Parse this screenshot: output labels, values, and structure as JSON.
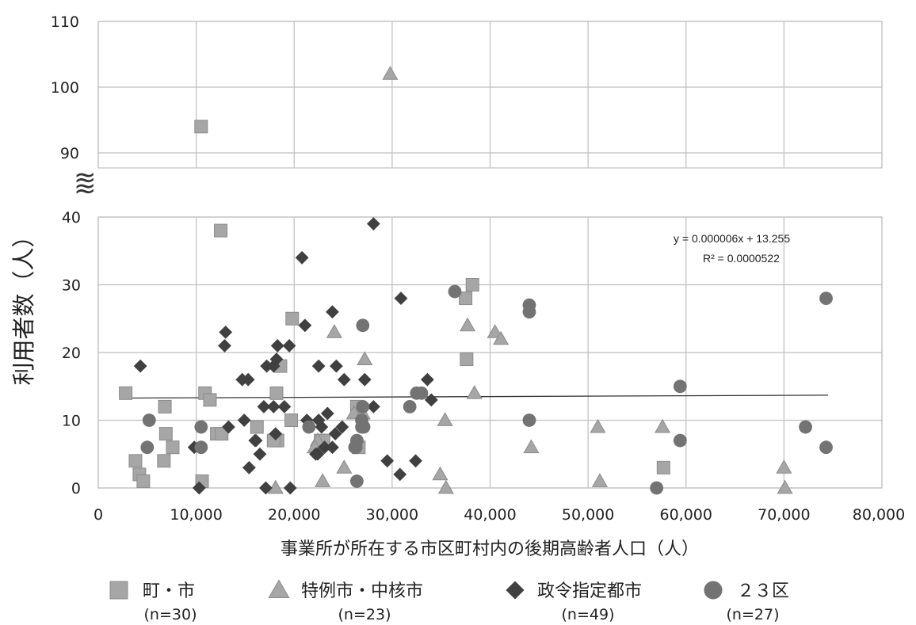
{
  "chart_data": {
    "type": "scatter",
    "title": "",
    "xlabel": "事業所が所在する市区町村内の後期高齢者人口（人）",
    "ylabel": "利用者数（人）",
    "xlim": [
      0,
      80000
    ],
    "x_ticks": [
      "0",
      "10,000",
      "20,000",
      "30,000",
      "40,000",
      "50,000",
      "60,000",
      "70,000",
      "80,000"
    ],
    "ylim_lower": [
      0,
      40
    ],
    "y_ticks_lower": [
      "0",
      "10",
      "20",
      "30",
      "40"
    ],
    "ylim_upper": [
      88,
      110
    ],
    "y_ticks_upper": [
      "90",
      "100",
      "110"
    ],
    "axis_break_symbol": "≈",
    "grid": true,
    "legend_position": "bottom",
    "trendline": {
      "equation": "y = 0.000006x + 13.255",
      "r2": "R² = 0.0000522",
      "x_range": [
        3000,
        74500
      ],
      "slope": 6e-06,
      "intercept": 13.255
    },
    "series": [
      {
        "name": "町・市",
        "n_label": "(n=30)",
        "marker": "square",
        "color": "#a6a6a6",
        "points": [
          [
            10500,
            94
          ],
          [
            12500,
            38
          ],
          [
            2800,
            14
          ],
          [
            3800,
            4
          ],
          [
            4200,
            2
          ],
          [
            4600,
            1
          ],
          [
            6800,
            12
          ],
          [
            6900,
            8
          ],
          [
            6700,
            4
          ],
          [
            7600,
            6
          ],
          [
            10600,
            1
          ],
          [
            10900,
            14
          ],
          [
            11400,
            13
          ],
          [
            12100,
            8
          ],
          [
            12600,
            8
          ],
          [
            16200,
            9
          ],
          [
            18200,
            14
          ],
          [
            18300,
            7
          ],
          [
            18600,
            18
          ],
          [
            19800,
            25
          ],
          [
            19700,
            10
          ],
          [
            22700,
            7
          ],
          [
            26400,
            12
          ],
          [
            37500,
            28
          ],
          [
            38200,
            30
          ],
          [
            37600,
            19
          ],
          [
            57700,
            3
          ],
          [
            17900,
            7
          ],
          [
            26600,
            6
          ],
          [
            23000,
            7
          ]
        ]
      },
      {
        "name": "特例市・中核市",
        "n_label": "(n=23)",
        "marker": "triangle",
        "color": "#a6a6a6",
        "points": [
          [
            29800,
            102
          ],
          [
            18100,
            0
          ],
          [
            22400,
            7
          ],
          [
            22900,
            1
          ],
          [
            24100,
            23
          ],
          [
            25100,
            3
          ],
          [
            26100,
            11
          ],
          [
            27200,
            19
          ],
          [
            27000,
            11
          ],
          [
            34900,
            2
          ],
          [
            35500,
            0
          ],
          [
            35400,
            10
          ],
          [
            37700,
            24
          ],
          [
            38400,
            14
          ],
          [
            40500,
            23
          ],
          [
            41100,
            22
          ],
          [
            44200,
            6
          ],
          [
            51000,
            9
          ],
          [
            51200,
            1
          ],
          [
            57600,
            9
          ],
          [
            70000,
            3
          ],
          [
            70100,
            0
          ],
          [
            22100,
            6
          ]
        ]
      },
      {
        "name": "政令指定都市",
        "n_label": "(n=49)",
        "marker": "diamond",
        "color": "#404040",
        "points": [
          [
            4300,
            18
          ],
          [
            9800,
            6
          ],
          [
            10300,
            0
          ],
          [
            13000,
            23
          ],
          [
            12900,
            21
          ],
          [
            13300,
            9
          ],
          [
            14700,
            16
          ],
          [
            15300,
            16
          ],
          [
            14900,
            10
          ],
          [
            15400,
            3
          ],
          [
            16100,
            7
          ],
          [
            16500,
            5
          ],
          [
            16900,
            12
          ],
          [
            17200,
            18
          ],
          [
            17100,
            0
          ],
          [
            17900,
            18
          ],
          [
            17900,
            12
          ],
          [
            18100,
            8
          ],
          [
            18200,
            19
          ],
          [
            18300,
            21
          ],
          [
            19000,
            12
          ],
          [
            19500,
            21
          ],
          [
            19600,
            0
          ],
          [
            20800,
            34
          ],
          [
            21100,
            24
          ],
          [
            22200,
            5
          ],
          [
            22500,
            18
          ],
          [
            22500,
            10
          ],
          [
            22800,
            9
          ],
          [
            23100,
            6
          ],
          [
            23400,
            11
          ],
          [
            23900,
            26
          ],
          [
            23900,
            6
          ],
          [
            24200,
            8
          ],
          [
            24300,
            18
          ],
          [
            24900,
            9
          ],
          [
            25100,
            16
          ],
          [
            27200,
            16
          ],
          [
            28100,
            39
          ],
          [
            28100,
            12
          ],
          [
            29500,
            4
          ],
          [
            30800,
            2
          ],
          [
            30900,
            28
          ],
          [
            32400,
            4
          ],
          [
            33600,
            16
          ],
          [
            34000,
            13
          ],
          [
            22400,
            5
          ],
          [
            16000,
            7
          ],
          [
            21300,
            10
          ]
        ]
      },
      {
        "name": "２３区",
        "n_label": "(n=27)",
        "marker": "circle",
        "color": "#737373",
        "points": [
          [
            5000,
            6
          ],
          [
            5200,
            10
          ],
          [
            10500,
            9
          ],
          [
            10500,
            6
          ],
          [
            21500,
            9
          ],
          [
            26200,
            6
          ],
          [
            26400,
            1
          ],
          [
            26400,
            7
          ],
          [
            26900,
            10
          ],
          [
            27000,
            12
          ],
          [
            27000,
            24
          ],
          [
            27100,
            9
          ],
          [
            31800,
            12
          ],
          [
            33000,
            14
          ],
          [
            36400,
            29
          ],
          [
            44000,
            27
          ],
          [
            44000,
            26
          ],
          [
            44000,
            10
          ],
          [
            57000,
            0
          ],
          [
            59400,
            15
          ],
          [
            59400,
            7
          ],
          [
            72200,
            9
          ],
          [
            74300,
            28
          ],
          [
            74300,
            6
          ],
          [
            26300,
            6
          ],
          [
            26900,
            9
          ],
          [
            32500,
            14
          ]
        ]
      }
    ]
  }
}
